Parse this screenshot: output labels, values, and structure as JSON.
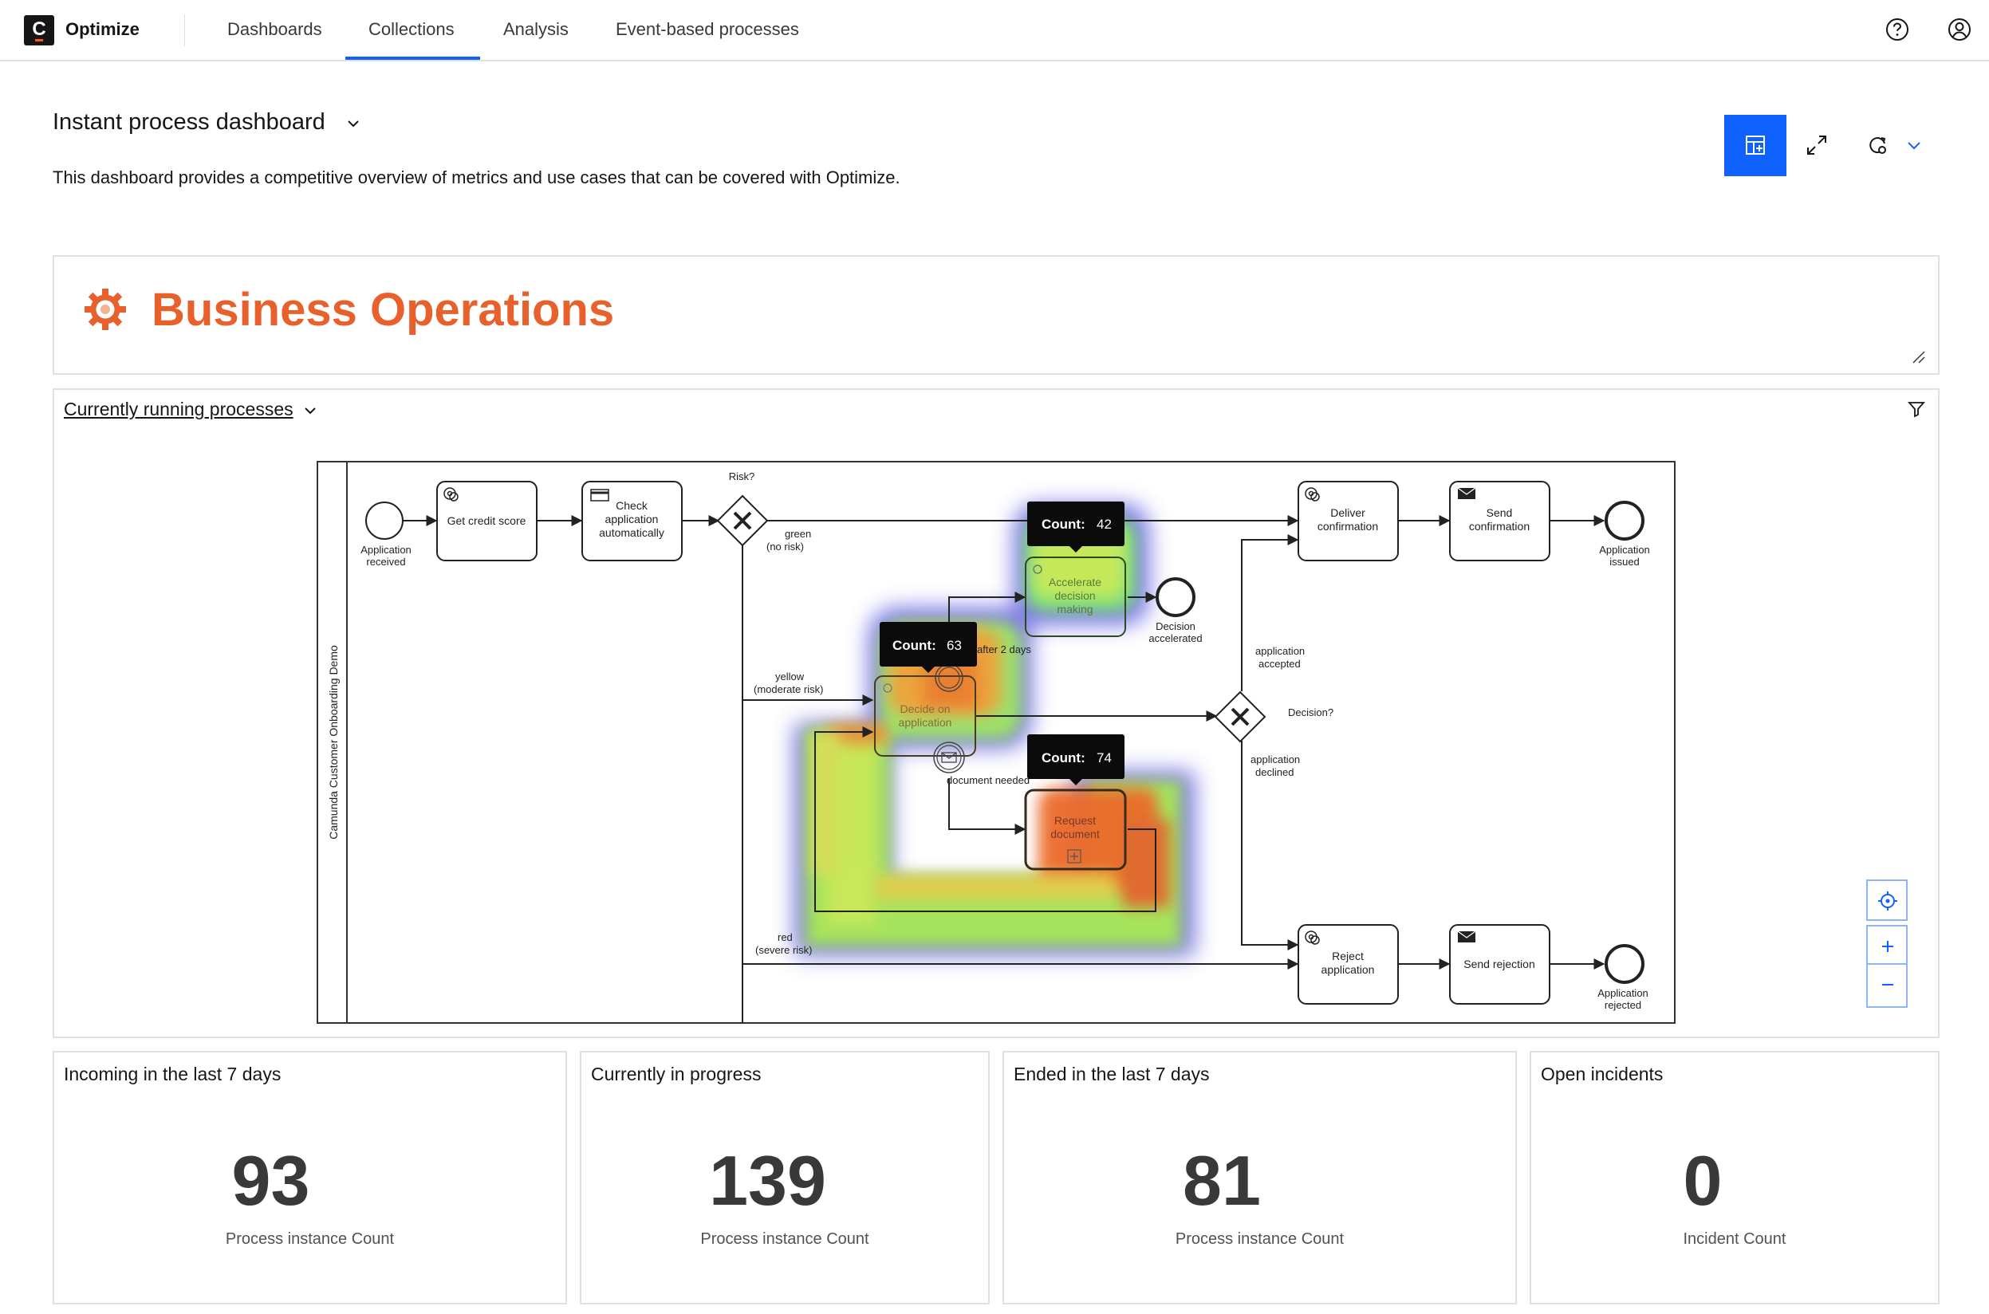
{
  "app": {
    "logo_letter": "C",
    "name": "Optimize"
  },
  "nav": {
    "tabs": [
      "Dashboards",
      "Collections",
      "Analysis",
      "Event-based processes"
    ],
    "active_tab": "Collections",
    "icons": [
      "help-icon",
      "user-profile-icon"
    ]
  },
  "dashboard": {
    "title": "Instant process dashboard",
    "description": "This dashboard provides a competitive overview of metrics and use cases that can be covered with Optimize.",
    "toolbar_icons": [
      "add-tile-icon",
      "fullscreen-icon",
      "auto-refresh-icon",
      "chevron-down-icon"
    ]
  },
  "text_tile": {
    "heading": "Business Operations",
    "icon": "gear-icon",
    "color": "#e8612c"
  },
  "report": {
    "title": "Currently running processes",
    "pool_label": "Camunda Customer Onboarding Demo",
    "elements": {
      "start_event": "Application received",
      "get_credit_score": "Get credit score",
      "check_application_1": "Check",
      "check_application_2": "application",
      "check_application_3": "automatically",
      "risk_gateway": "Risk?",
      "green_1": "green",
      "green_2": "(no risk)",
      "yellow_1": "yellow",
      "yellow_2": "(moderate risk)",
      "red_1": "red",
      "red_2": "(severe risk)",
      "accelerate_1": "Accelerate",
      "accelerate_2": "decision",
      "accelerate_3": "making",
      "decision_accelerated_1": "Decision",
      "decision_accelerated_2": "accelerated",
      "after_2_days": "after 2 days",
      "decide_1": "Decide on",
      "decide_2": "application",
      "document_needed": "document needed",
      "request_1": "Request",
      "request_2": "document",
      "decision_gateway": "Decision?",
      "accepted_1": "application",
      "accepted_2": "accepted",
      "declined_1": "application",
      "declined_2": "declined",
      "deliver_1": "Deliver",
      "deliver_2": "confirmation",
      "send_conf_1": "Send",
      "send_conf_2": "confirmation",
      "issued_1": "Application",
      "issued_2": "issued",
      "reject_1": "Reject",
      "reject_2": "application",
      "send_rejection": "Send rejection",
      "rejected_1": "Application",
      "rejected_2": "rejected",
      "received_1": "Application",
      "received_2": "received"
    },
    "count_prefix": "Count:",
    "counts": {
      "accelerate_decision_making": "42",
      "decide_on_application": "63",
      "request_document": "74"
    },
    "zoom_controls": [
      "reset-view-icon",
      "zoom-in-icon",
      "zoom-out-icon"
    ]
  },
  "kpis": [
    {
      "title": "Incoming in the last 7 days",
      "value": "93",
      "label": "Process instance Count"
    },
    {
      "title": "Currently in progress",
      "value": "139",
      "label": "Process instance Count"
    },
    {
      "title": "Ended in the last 7 days",
      "value": "81",
      "label": "Process instance Count"
    },
    {
      "title": "Open incidents",
      "value": "0",
      "label": "Incident Count"
    }
  ]
}
